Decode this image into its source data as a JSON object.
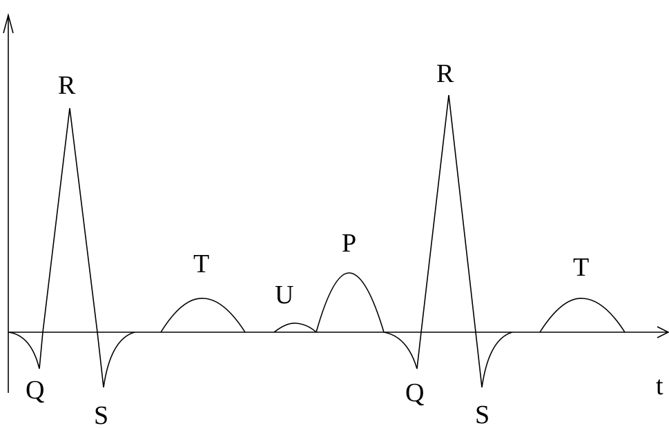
{
  "diagram": {
    "axis_label": "t",
    "labels": {
      "beat1_r": "R",
      "beat1_q": "Q",
      "beat1_s": "S",
      "beat1_t": "T",
      "u": "U",
      "p": "P",
      "beat2_r": "R",
      "beat2_q": "Q",
      "beat2_s": "S",
      "beat2_t": "T"
    }
  }
}
